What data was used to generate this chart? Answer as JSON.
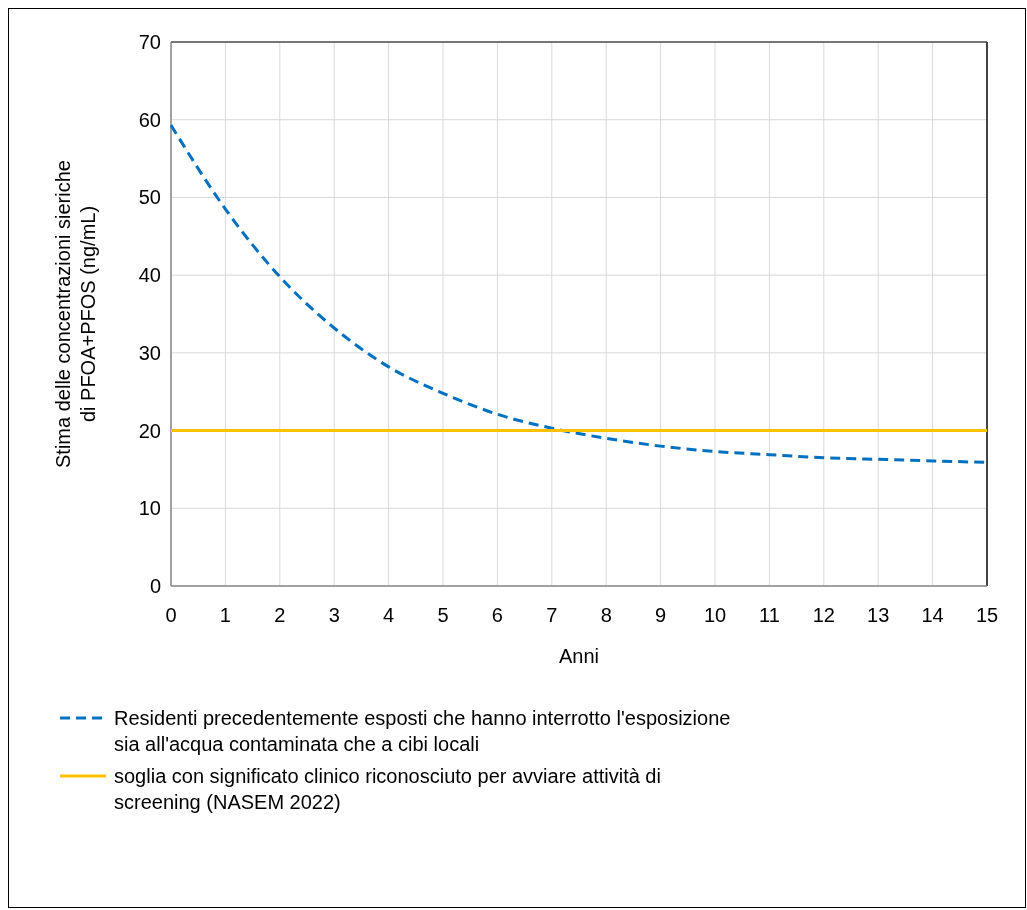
{
  "chart_data": {
    "type": "line",
    "xlabel": "Anni",
    "ylabel": "Stima delle concentrazioni sieriche\ndi  PFOA+PFOS (ng/mL)",
    "xlim": [
      0,
      15
    ],
    "xticks": [
      0,
      1,
      2,
      3,
      4,
      5,
      6,
      7,
      8,
      9,
      10,
      11,
      12,
      13,
      14,
      15
    ],
    "ylim": [
      0,
      70
    ],
    "yticks": [
      0,
      10,
      20,
      30,
      40,
      50,
      60,
      70
    ],
    "grid": true,
    "legend": "bottom",
    "marker": "none",
    "series": [
      {
        "name": "Residenti precedentemente esposti che hanno interrotto l'esposizione\nsia all'acqua contaminata che a cibi locali",
        "color": "#0070c0",
        "line_style": "dashed",
        "x": [
          0,
          1,
          2,
          3,
          4,
          5,
          6,
          7,
          8,
          9,
          10,
          11,
          12,
          13,
          14,
          15
        ],
        "values": [
          59.3,
          48.5,
          39.8,
          33.2,
          28.2,
          24.8,
          22.1,
          20.3,
          19.0,
          18.0,
          17.3,
          16.9,
          16.5,
          16.3,
          16.1,
          15.9
        ]
      },
      {
        "name": "soglia con significato clinico riconosciuto per avviare attività di\nscreening (NASEM 2022)",
        "color": "#ffc000",
        "line_style": "solid",
        "x": [
          0,
          15
        ],
        "values": [
          20,
          20
        ]
      }
    ]
  }
}
